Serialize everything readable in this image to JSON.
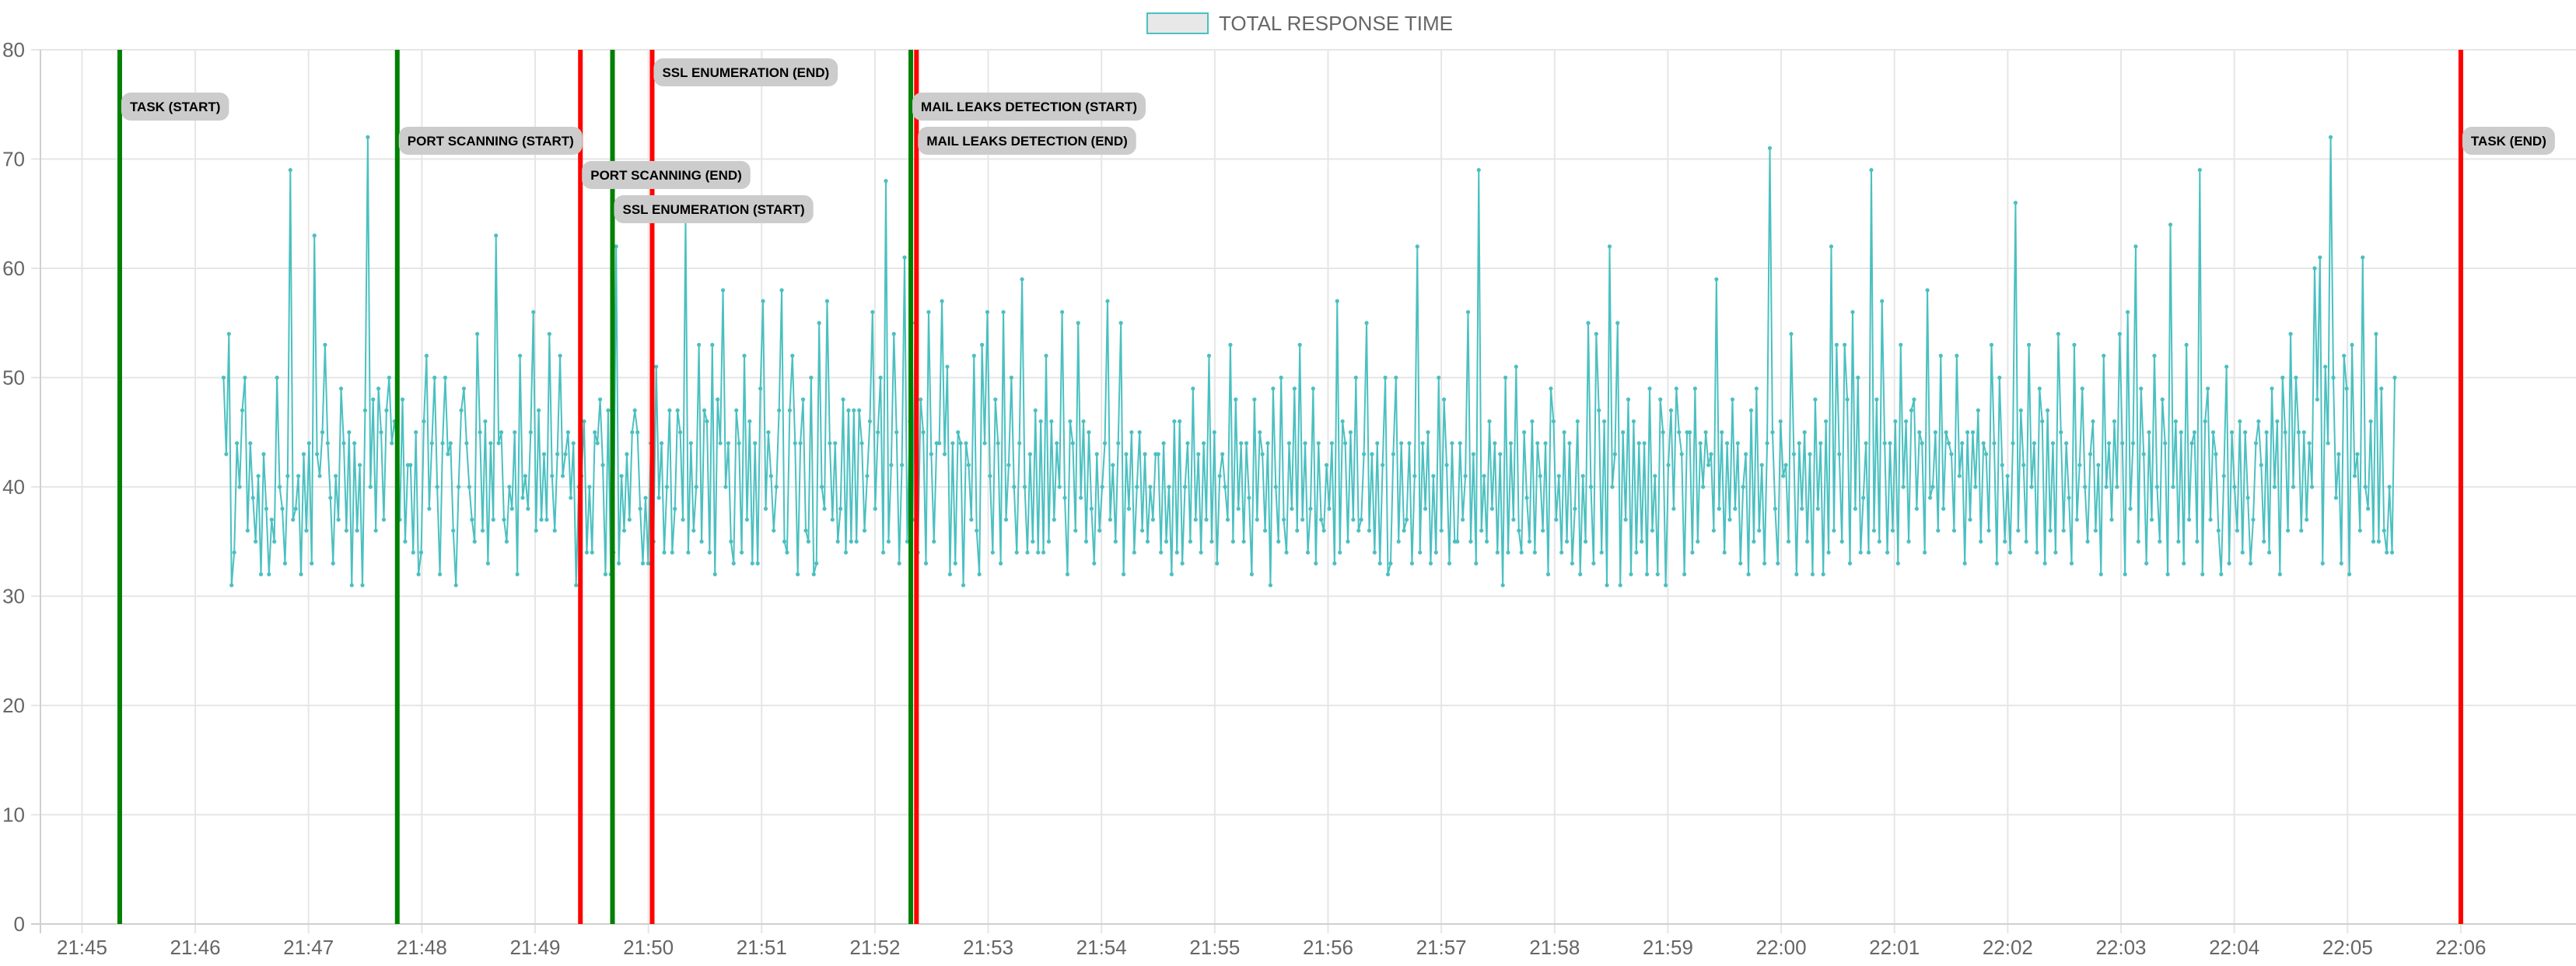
{
  "chart_data": {
    "type": "line",
    "legend": {
      "label": "TOTAL RESPONSE TIME",
      "position": "top-center"
    },
    "colors": {
      "series": "#4bc0c0",
      "legend_fill": "#e8e8e8",
      "start_marker": "#008000",
      "end_marker": "#ff0000",
      "grid": "#e6e6e6",
      "label_bg": "#cccccc"
    },
    "grid": true,
    "ylim": [
      0,
      80
    ],
    "yticks": [
      0,
      10,
      20,
      30,
      40,
      50,
      60,
      70,
      80
    ],
    "xlim": [
      "21:44:38",
      "22:07:01"
    ],
    "xticks": [
      "21:45",
      "21:46",
      "21:47",
      "21:48",
      "21:49",
      "21:50",
      "21:51",
      "21:52",
      "21:53",
      "21:54",
      "21:55",
      "21:56",
      "21:57",
      "21:58",
      "21:59",
      "22:00",
      "22:01",
      "22:02",
      "22:03",
      "22:04",
      "22:05",
      "22:06"
    ],
    "series": [
      {
        "x_start": "21:46:15",
        "x_end": "22:05:25",
        "values": [
          50,
          43,
          54,
          31,
          34,
          44,
          40,
          47,
          50,
          36,
          44,
          39,
          35,
          41,
          32,
          43,
          38,
          32,
          37,
          35,
          50,
          40,
          38,
          33,
          41,
          69,
          37,
          38,
          41,
          32,
          43,
          36,
          44,
          33,
          63,
          43,
          41,
          45,
          53,
          44,
          39,
          33,
          41,
          37,
          49,
          44,
          36,
          45,
          31,
          44,
          36,
          42,
          31,
          47,
          72,
          40,
          48,
          36,
          49,
          45,
          37,
          47,
          50,
          44,
          46,
          44,
          37,
          48,
          35,
          42,
          42,
          34,
          45,
          32,
          34,
          46,
          52,
          38,
          44,
          50,
          40,
          32,
          44,
          50,
          43,
          44,
          36,
          31,
          40,
          47,
          49,
          44,
          40,
          37,
          35,
          54,
          45,
          36,
          46,
          33,
          44,
          37,
          63,
          44,
          45,
          37,
          35,
          40,
          38,
          45,
          32,
          52,
          39,
          41,
          38,
          45,
          56,
          36,
          47,
          37,
          43,
          37,
          54,
          41,
          36,
          43,
          52,
          41,
          43,
          45,
          39,
          44,
          31,
          40,
          41,
          46,
          34,
          40,
          34,
          45,
          44,
          48,
          42,
          32,
          47,
          32,
          34,
          62,
          33,
          41,
          36,
          43,
          37,
          45,
          47,
          45,
          38,
          33,
          39,
          33,
          44,
          35,
          51,
          39,
          44,
          34,
          40,
          47,
          34,
          38,
          47,
          45,
          37,
          65,
          34,
          44,
          36,
          40,
          53,
          35,
          47,
          46,
          34,
          53,
          32,
          48,
          44,
          58,
          40,
          44,
          35,
          33,
          47,
          44,
          34,
          52,
          37,
          46,
          33,
          44,
          33,
          49,
          57,
          38,
          45,
          41,
          36,
          40,
          47,
          58,
          35,
          34,
          47,
          52,
          44,
          32,
          44,
          48,
          36,
          35,
          50,
          32,
          33,
          55,
          40,
          38,
          57,
          44,
          37,
          44,
          35,
          38,
          48,
          34,
          47,
          35,
          47,
          35,
          47,
          44,
          36,
          41,
          46,
          56,
          38,
          45,
          50,
          34,
          68,
          35,
          42,
          54,
          45,
          33,
          42,
          61,
          35,
          46,
          37,
          55,
          34,
          48,
          45,
          33,
          56,
          43,
          35,
          44,
          44,
          57,
          43,
          51,
          32,
          44,
          33,
          45,
          44,
          31,
          44,
          42,
          37,
          52,
          36,
          32,
          53,
          44,
          56,
          41,
          34,
          48,
          44,
          33,
          56,
          37,
          42,
          50,
          40,
          34,
          44,
          59,
          40,
          34,
          43,
          35,
          47,
          34,
          46,
          34,
          52,
          35,
          46,
          37,
          44,
          40,
          56,
          39,
          32,
          46,
          44,
          36,
          55,
          39,
          46,
          35,
          45,
          38,
          33,
          43,
          36,
          40,
          44,
          57,
          37,
          42,
          35,
          44,
          55,
          32,
          43,
          38,
          45,
          34,
          40,
          45,
          36,
          43,
          35,
          40,
          37,
          43,
          43,
          34,
          44,
          35,
          40,
          32,
          46,
          34,
          46,
          33,
          40,
          44,
          35,
          49,
          37,
          43,
          34,
          44,
          37,
          52,
          35,
          45,
          33,
          41,
          43,
          40,
          37,
          53,
          35,
          48,
          38,
          44,
          35,
          44,
          39,
          32,
          48,
          37,
          45,
          43,
          36,
          44,
          31,
          49,
          40,
          35,
          50,
          37,
          34,
          44,
          38,
          49,
          36,
          53,
          37,
          44,
          34,
          38,
          49,
          33,
          44,
          37,
          36,
          42,
          38,
          44,
          33,
          57,
          34,
          46,
          44,
          35,
          45,
          37,
          50,
          36,
          37,
          43,
          55,
          36,
          43,
          34,
          44,
          33,
          42,
          50,
          32,
          33,
          43,
          50,
          35,
          44,
          36,
          37,
          44,
          33,
          41,
          62,
          34,
          44,
          38,
          45,
          33,
          41,
          34,
          50,
          36,
          48,
          42,
          33,
          44,
          35,
          35,
          44,
          37,
          41,
          56,
          35,
          43,
          33,
          69,
          36,
          41,
          35,
          46,
          38,
          44,
          34,
          43,
          31,
          50,
          34,
          44,
          37,
          51,
          36,
          34,
          45,
          39,
          35,
          46,
          34,
          44,
          41,
          36,
          44,
          32,
          49,
          46,
          37,
          41,
          34,
          45,
          35,
          44,
          33,
          38,
          46,
          32,
          41,
          35,
          55,
          40,
          33,
          54,
          47,
          34,
          46,
          31,
          62,
          40,
          43,
          55,
          31,
          45,
          37,
          48,
          32,
          46,
          34,
          44,
          35,
          44,
          32,
          49,
          36,
          41,
          32,
          48,
          45,
          31,
          42,
          47,
          38,
          49,
          45,
          43,
          32,
          45,
          45,
          34,
          49,
          35,
          44,
          40,
          45,
          42,
          43,
          36,
          59,
          38,
          45,
          34,
          44,
          37,
          48,
          38,
          44,
          33,
          40,
          43,
          32,
          47,
          35,
          49,
          36,
          42,
          33,
          44,
          71,
          45,
          38,
          33,
          46,
          41,
          42,
          35,
          54,
          43,
          32,
          44,
          38,
          45,
          35,
          43,
          32,
          48,
          38,
          44,
          32,
          46,
          34,
          62,
          36,
          53,
          43,
          35,
          53,
          48,
          33,
          56,
          38,
          50,
          34,
          39,
          44,
          34,
          69,
          36,
          48,
          35,
          57,
          44,
          34,
          44,
          36,
          46,
          33,
          53,
          40,
          46,
          35,
          47,
          48,
          38,
          45,
          44,
          34,
          58,
          39,
          40,
          45,
          36,
          52,
          38,
          45,
          44,
          43,
          36,
          52,
          41,
          44,
          33,
          45,
          37,
          45,
          40,
          47,
          35,
          44,
          43,
          36,
          53,
          44,
          33,
          50,
          42,
          35,
          41,
          34,
          44,
          66,
          36,
          47,
          42,
          35,
          53,
          40,
          44,
          34,
          49,
          46,
          33,
          47,
          36,
          44,
          34,
          54,
          45,
          36,
          44,
          39,
          33,
          53,
          37,
          42,
          49,
          40,
          35,
          43,
          46,
          36,
          42,
          32,
          52,
          40,
          44,
          37,
          46,
          40,
          54,
          44,
          32,
          56,
          38,
          44,
          62,
          35,
          49,
          43,
          33,
          45,
          37,
          52,
          40,
          35,
          48,
          44,
          32,
          64,
          40,
          46,
          35,
          45,
          33,
          53,
          37,
          44,
          45,
          35,
          69,
          32,
          46,
          49,
          37,
          45,
          43,
          36,
          32,
          41,
          51,
          33,
          45,
          40,
          36,
          46,
          34,
          45,
          39,
          33,
          37,
          44,
          46,
          42,
          35,
          45,
          34,
          49,
          40,
          46,
          32,
          50,
          45,
          36,
          54,
          40,
          50,
          45,
          36,
          45,
          37,
          44,
          40,
          60,
          48,
          61,
          33,
          51,
          44,
          72,
          50,
          39,
          43,
          33,
          52,
          49,
          32,
          53,
          41,
          43,
          36,
          61,
          40,
          38,
          46,
          35,
          54,
          35,
          49,
          36,
          34,
          40,
          34,
          50
        ]
      }
    ],
    "annotations": [
      {
        "label": "TASK (START)",
        "time": "21:45:20",
        "type": "start"
      },
      {
        "label": "PORT SCANNING (START)",
        "time": "21:47:47",
        "type": "start"
      },
      {
        "label": "PORT SCANNING (END)",
        "time": "21:49:24",
        "type": "end"
      },
      {
        "label": "SSL ENUMERATION (START)",
        "time": "21:49:41",
        "type": "start"
      },
      {
        "label": "SSL ENUMERATION (END)",
        "time": "21:50:02",
        "type": "end"
      },
      {
        "label": "MAIL LEAKS DETECTION (START)",
        "time": "21:52:19",
        "type": "start"
      },
      {
        "label": "MAIL LEAKS DETECTION (END)",
        "time": "21:52:22",
        "type": "end"
      },
      {
        "label": "TASK (END)",
        "time": "22:06:00",
        "type": "end"
      }
    ]
  }
}
